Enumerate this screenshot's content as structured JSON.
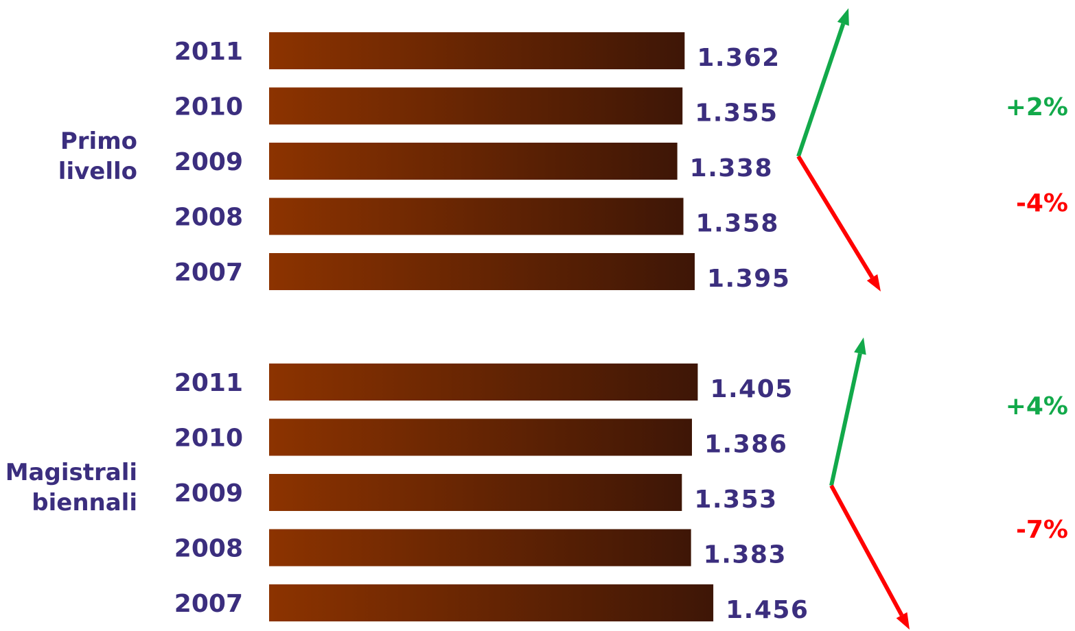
{
  "chart_data": {
    "type": "bar",
    "orientation": "horizontal",
    "colors": {
      "bar_start": "#8c3300",
      "bar_end": "#3e1606",
      "text": "#3b2e7e",
      "up": "#12a94a",
      "down": "#ff0000"
    },
    "groups": [
      {
        "label_lines": [
          "Primo",
          "livello"
        ],
        "categories": [
          "2011",
          "2010",
          "2009",
          "2008",
          "2007"
        ],
        "values": [
          1362,
          1355,
          1338,
          1358,
          1395
        ],
        "value_labels": [
          "1.362",
          "1.355",
          "1.338",
          "1.358",
          "1.395"
        ],
        "annotations": [
          {
            "text": "+2%",
            "direction": "up",
            "color": "#12a94a"
          },
          {
            "text": "-4%",
            "direction": "down",
            "color": "#ff0000"
          }
        ]
      },
      {
        "label_lines": [
          "Magistrali",
          "biennali"
        ],
        "categories": [
          "2011",
          "2010",
          "2009",
          "2008",
          "2007"
        ],
        "values": [
          1405,
          1386,
          1353,
          1383,
          1456
        ],
        "value_labels": [
          "1.405",
          "1.386",
          "1.353",
          "1.383",
          "1.456"
        ],
        "annotations": [
          {
            "text": "+4%",
            "direction": "up",
            "color": "#12a94a"
          },
          {
            "text": "-7%",
            "direction": "down",
            "color": "#ff0000"
          }
        ]
      }
    ]
  }
}
